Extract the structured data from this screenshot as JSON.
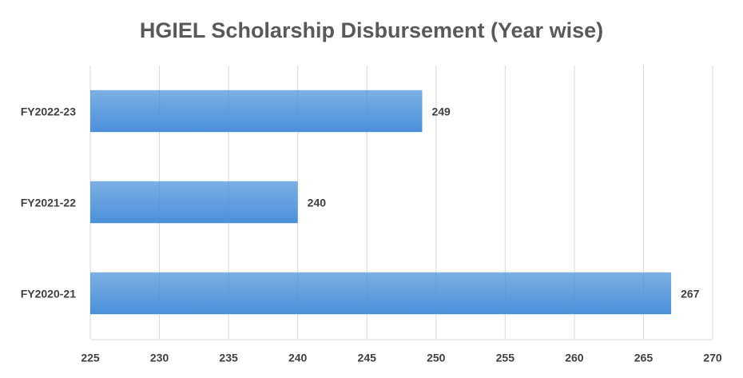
{
  "chart_data": {
    "type": "barh",
    "title": "HGIEL Scholarship Disbursement (Year wise)",
    "categories": [
      "FY2022-23",
      "FY2021-22",
      "FY2020-21"
    ],
    "values": [
      249,
      240,
      267
    ],
    "color": "#4a90d9",
    "xlim": [
      225,
      270
    ],
    "xticks": [
      225,
      230,
      235,
      240,
      245,
      250,
      255,
      260,
      265,
      270
    ],
    "grid": true
  }
}
